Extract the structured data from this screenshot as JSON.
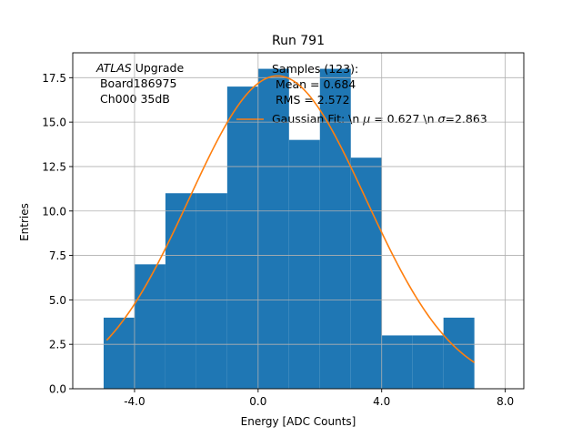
{
  "chart_data": {
    "type": "bar",
    "title": "Run 791",
    "xlabel": "Energy [ADC Counts]",
    "ylabel": "Entries",
    "xlim": [
      -6.0,
      8.6
    ],
    "ylim": [
      0,
      18.9
    ],
    "grid": true,
    "xticks": [
      -4.0,
      0.0,
      4.0,
      8.0
    ],
    "xtick_labels": [
      "-4.0",
      "0.0",
      "4.0",
      "8.0"
    ],
    "yticks": [
      0.0,
      2.5,
      5.0,
      7.5,
      10.0,
      12.5,
      15.0,
      17.5
    ],
    "ytick_labels": [
      "0.0",
      "2.5",
      "5.0",
      "7.5",
      "10.0",
      "12.5",
      "15.0",
      "17.5"
    ],
    "bin_edges": [
      -5,
      -4,
      -3,
      -2,
      -1,
      0,
      1,
      2,
      3,
      4,
      5,
      6,
      7
    ],
    "counts": [
      4,
      7,
      11,
      11,
      17,
      18,
      14,
      18,
      13,
      3,
      3,
      4
    ],
    "bar_color": "#1f77b4",
    "fit": {
      "name": "Gaussian Fit",
      "mu": 0.627,
      "sigma": 2.863,
      "amplitude": 17.6,
      "x_range": [
        -4.9,
        7.0
      ],
      "color": "#ff7f0e"
    },
    "legend": {
      "position": "top-right",
      "samples_line1": "Samples (123):",
      "samples_line2": " Mean = 0.684",
      "samples_line3": " RMS = 2.572",
      "fit_prefix": "Gaussian Fit: \\n ",
      "fit_mu_symbol": "μ",
      "fit_mid": " = 0.627 \\n ",
      "fit_sigma_symbol": "σ",
      "fit_suffix": "=2.863"
    },
    "annotation": {
      "italic": "ATLAS",
      "rest": " Upgrade",
      "line2": " Board186975",
      "line3": " Ch000 35dB"
    }
  }
}
